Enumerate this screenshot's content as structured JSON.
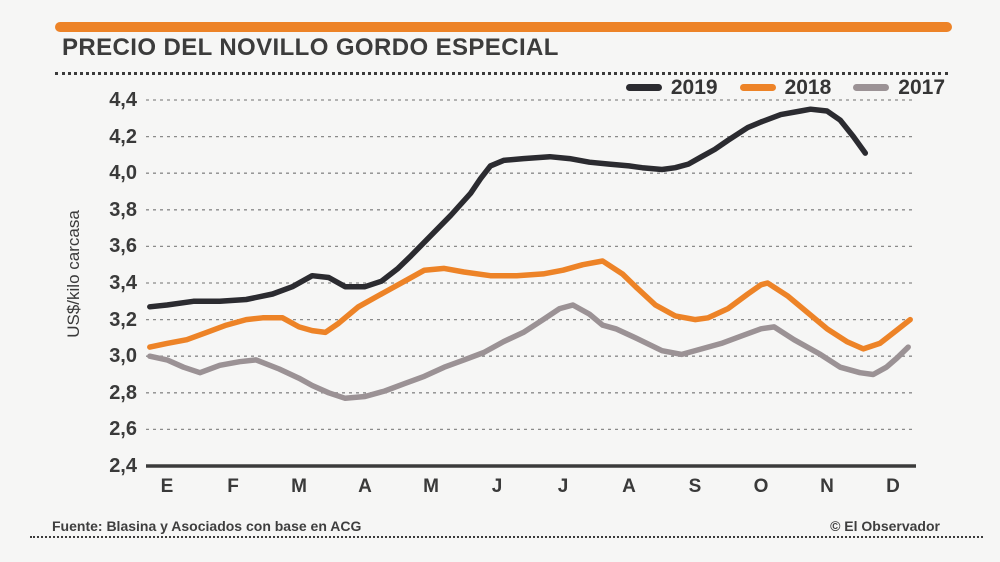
{
  "page": {
    "background": "#f6f6f5"
  },
  "header": {
    "accent_bar_color": "#ED8327",
    "title": "PRECIO DEL NOVILLO GORDO ESPECIAL"
  },
  "legend": {
    "items": [
      {
        "label": "2019",
        "color": "#2B2B30"
      },
      {
        "label": "2018",
        "color": "#ED8327"
      },
      {
        "label": "2017",
        "color": "#9B9295"
      }
    ]
  },
  "footer": {
    "source": "Fuente: Blasina y Asociados con base en ACG",
    "credit": "© El Observador"
  },
  "chart_data": {
    "type": "line",
    "title": "PRECIO DEL NOVILLO GORDO ESPECIAL",
    "ylabel": "US$/kilo carcasa",
    "x_categories": [
      "E",
      "F",
      "M",
      "A",
      "M",
      "J",
      "J",
      "A",
      "S",
      "O",
      "N",
      "D"
    ],
    "x_scale": "month index (0 = E ... 11 = D)",
    "y_ticks": [
      "4,4",
      "4,2",
      "4,0",
      "3,8",
      "3,6",
      "3,4",
      "3,2",
      "3,0",
      "2,8",
      "2,6",
      "2,4"
    ],
    "ylim": [
      2.4,
      4.4
    ],
    "grid": "horizontal-dashed",
    "grid_color": "#8b8b8b",
    "axis_color": "#3b3b3b",
    "legend_position": "top-right",
    "series": [
      {
        "name": "2019",
        "color": "#2B2B30",
        "points": [
          [
            -0.26,
            3.27
          ],
          [
            0,
            3.28
          ],
          [
            0.4,
            3.3
          ],
          [
            0.8,
            3.3
          ],
          [
            1.2,
            3.31
          ],
          [
            1.6,
            3.34
          ],
          [
            1.9,
            3.38
          ],
          [
            2.2,
            3.44
          ],
          [
            2.45,
            3.43
          ],
          [
            2.7,
            3.38
          ],
          [
            3.0,
            3.38
          ],
          [
            3.25,
            3.41
          ],
          [
            3.5,
            3.48
          ],
          [
            3.7,
            3.55
          ],
          [
            4.0,
            3.66
          ],
          [
            4.3,
            3.77
          ],
          [
            4.6,
            3.89
          ],
          [
            4.75,
            3.97
          ],
          [
            4.9,
            4.04
          ],
          [
            5.1,
            4.07
          ],
          [
            5.4,
            4.08
          ],
          [
            5.8,
            4.09
          ],
          [
            6.1,
            4.08
          ],
          [
            6.4,
            4.06
          ],
          [
            6.7,
            4.05
          ],
          [
            7.0,
            4.04
          ],
          [
            7.2,
            4.03
          ],
          [
            7.5,
            4.02
          ],
          [
            7.7,
            4.03
          ],
          [
            7.9,
            4.05
          ],
          [
            8.1,
            4.09
          ],
          [
            8.3,
            4.13
          ],
          [
            8.5,
            4.18
          ],
          [
            8.8,
            4.25
          ],
          [
            9.0,
            4.28
          ],
          [
            9.3,
            4.32
          ],
          [
            9.6,
            4.34
          ],
          [
            9.75,
            4.35
          ],
          [
            10.0,
            4.34
          ],
          [
            10.2,
            4.29
          ],
          [
            10.4,
            4.2
          ],
          [
            10.58,
            4.11
          ]
        ]
      },
      {
        "name": "2018",
        "color": "#ED8327",
        "points": [
          [
            -0.26,
            3.05
          ],
          [
            0,
            3.07
          ],
          [
            0.3,
            3.09
          ],
          [
            0.6,
            3.13
          ],
          [
            0.9,
            3.17
          ],
          [
            1.2,
            3.2
          ],
          [
            1.45,
            3.21
          ],
          [
            1.75,
            3.21
          ],
          [
            2.0,
            3.16
          ],
          [
            2.2,
            3.14
          ],
          [
            2.4,
            3.13
          ],
          [
            2.6,
            3.18
          ],
          [
            2.9,
            3.27
          ],
          [
            3.3,
            3.35
          ],
          [
            3.6,
            3.41
          ],
          [
            3.9,
            3.47
          ],
          [
            4.2,
            3.48
          ],
          [
            4.5,
            3.46
          ],
          [
            4.9,
            3.44
          ],
          [
            5.3,
            3.44
          ],
          [
            5.7,
            3.45
          ],
          [
            6.0,
            3.47
          ],
          [
            6.3,
            3.5
          ],
          [
            6.6,
            3.52
          ],
          [
            6.9,
            3.45
          ],
          [
            7.1,
            3.38
          ],
          [
            7.4,
            3.28
          ],
          [
            7.7,
            3.22
          ],
          [
            8.0,
            3.2
          ],
          [
            8.2,
            3.21
          ],
          [
            8.5,
            3.26
          ],
          [
            8.8,
            3.34
          ],
          [
            9.0,
            3.39
          ],
          [
            9.1,
            3.4
          ],
          [
            9.4,
            3.33
          ],
          [
            9.7,
            3.24
          ],
          [
            10.0,
            3.15
          ],
          [
            10.3,
            3.08
          ],
          [
            10.55,
            3.04
          ],
          [
            10.8,
            3.07
          ],
          [
            11.05,
            3.14
          ],
          [
            11.26,
            3.2
          ]
        ]
      },
      {
        "name": "2017",
        "color": "#9B9295",
        "points": [
          [
            -0.26,
            3.0
          ],
          [
            0,
            2.98
          ],
          [
            0.25,
            2.94
          ],
          [
            0.5,
            2.91
          ],
          [
            0.8,
            2.95
          ],
          [
            1.1,
            2.97
          ],
          [
            1.35,
            2.98
          ],
          [
            1.7,
            2.93
          ],
          [
            2.0,
            2.88
          ],
          [
            2.2,
            2.84
          ],
          [
            2.45,
            2.8
          ],
          [
            2.7,
            2.77
          ],
          [
            3.0,
            2.78
          ],
          [
            3.3,
            2.81
          ],
          [
            3.6,
            2.85
          ],
          [
            3.9,
            2.89
          ],
          [
            4.2,
            2.94
          ],
          [
            4.5,
            2.98
          ],
          [
            4.8,
            3.02
          ],
          [
            5.1,
            3.08
          ],
          [
            5.4,
            3.13
          ],
          [
            5.7,
            3.2
          ],
          [
            5.95,
            3.26
          ],
          [
            6.15,
            3.28
          ],
          [
            6.4,
            3.23
          ],
          [
            6.6,
            3.17
          ],
          [
            6.8,
            3.15
          ],
          [
            7.1,
            3.1
          ],
          [
            7.5,
            3.03
          ],
          [
            7.8,
            3.01
          ],
          [
            8.1,
            3.04
          ],
          [
            8.4,
            3.07
          ],
          [
            8.7,
            3.11
          ],
          [
            9.0,
            3.15
          ],
          [
            9.2,
            3.16
          ],
          [
            9.5,
            3.09
          ],
          [
            9.9,
            3.01
          ],
          [
            10.2,
            2.94
          ],
          [
            10.5,
            2.91
          ],
          [
            10.7,
            2.9
          ],
          [
            10.9,
            2.94
          ],
          [
            11.06,
            2.99
          ],
          [
            11.23,
            3.05
          ]
        ]
      }
    ]
  }
}
